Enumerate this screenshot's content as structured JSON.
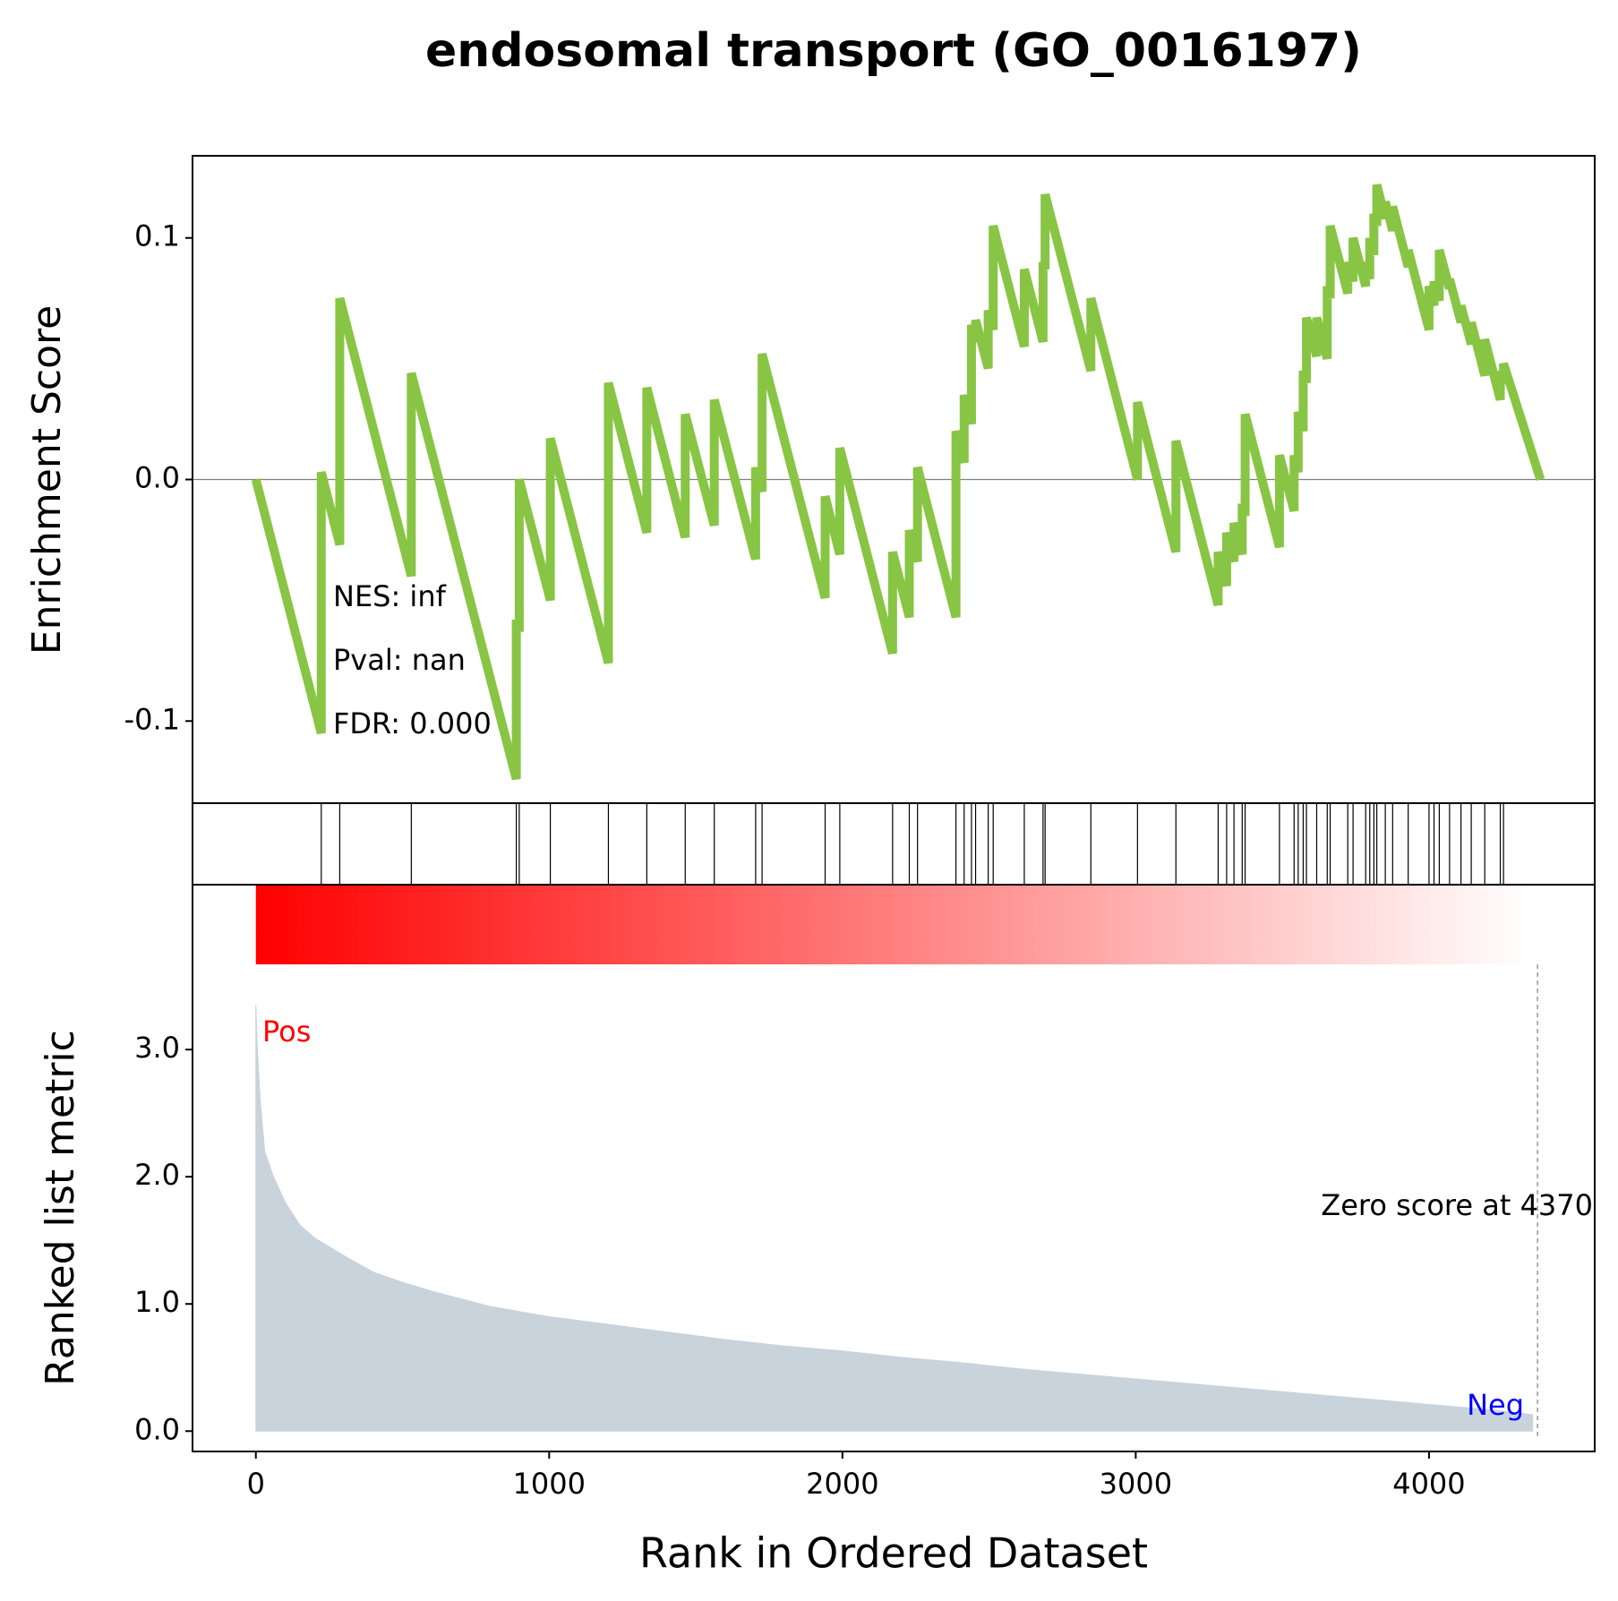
{
  "chart_data": [
    {
      "type": "line",
      "title": "endosomal transport (GO_0016197)",
      "ylabel": "Enrichment Score",
      "color": "#88c544",
      "xlim": [
        -216,
        4565
      ],
      "ylim": [
        -0.134,
        0.134
      ],
      "yticks": [
        -0.1,
        {
          "value": 0,
          "label": "0.0"
        },
        0.1
      ],
      "annotations": [
        "NES: inf",
        "Pval: nan",
        "FDR: 0.000"
      ],
      "x": [
        0,
        223,
        223,
        286,
        286,
        530,
        530,
        888,
        888,
        898,
        898,
        1004,
        1004,
        1202,
        1202,
        1333,
        1333,
        1464,
        1464,
        1563,
        1563,
        1704,
        1704,
        1726,
        1726,
        1941,
        1941,
        1991,
        1991,
        2171,
        2171,
        2228,
        2228,
        2256,
        2256,
        2387,
        2387,
        2415,
        2415,
        2440,
        2440,
        2454,
        2454,
        2497,
        2497,
        2514,
        2514,
        2620,
        2620,
        2684,
        2684,
        2691,
        2691,
        2847,
        2847,
        3006,
        3006,
        3137,
        3137,
        3281,
        3281,
        3310,
        3310,
        3335,
        3335,
        3363,
        3363,
        3373,
        3373,
        3490,
        3490,
        3540,
        3540,
        3554,
        3554,
        3571,
        3571,
        3582,
        3582,
        3617,
        3617,
        3653,
        3653,
        3663,
        3663,
        3723,
        3723,
        3741,
        3741,
        3784,
        3784,
        3798,
        3798,
        3812,
        3812,
        3822,
        3822,
        3851,
        3851,
        3876,
        3876,
        3929,
        3929,
        4000,
        4000,
        4017,
        4017,
        4035,
        4035,
        4070,
        4070,
        4109,
        4109,
        4144,
        4144,
        4190,
        4190,
        4243,
        4243,
        4254,
        4254,
        4380
      ],
      "values": [
        0,
        -0.105,
        0.003,
        -0.027,
        0.075,
        -0.04,
        0.044,
        -0.124,
        -0.058,
        -0.063,
        0,
        -0.05,
        0.017,
        -0.076,
        0.04,
        -0.022,
        0.038,
        -0.024,
        0.027,
        -0.019,
        0.033,
        -0.033,
        0.005,
        -0.005,
        0.052,
        -0.049,
        -0.007,
        -0.031,
        0.013,
        -0.072,
        -0.03,
        -0.057,
        -0.021,
        -0.034,
        0.005,
        -0.057,
        0.02,
        0.007,
        0.035,
        0.023,
        0.064,
        0.057,
        0.066,
        0.046,
        0.07,
        0.062,
        0.105,
        0.055,
        0.087,
        0.057,
        0.09,
        0.087,
        0.118,
        0.045,
        0.075,
        0,
        0.032,
        -0.03,
        0.016,
        -0.052,
        -0.03,
        -0.044,
        -0.022,
        -0.034,
        -0.018,
        -0.031,
        -0.01,
        -0.015,
        0.027,
        -0.028,
        0.01,
        -0.013,
        0.01,
        0.003,
        0.028,
        0.02,
        0.045,
        0.04,
        0.067,
        0.051,
        0.067,
        0.05,
        0.08,
        0.075,
        0.105,
        0.077,
        0.09,
        0.082,
        0.1,
        0.08,
        0.09,
        0.083,
        0.1,
        0.093,
        0.11,
        0.105,
        0.122,
        0.108,
        0.115,
        0.103,
        0.113,
        0.088,
        0.095,
        0.062,
        0.08,
        0.072,
        0.082,
        0.074,
        0.095,
        0.079,
        0.083,
        0.065,
        0.072,
        0.056,
        0.065,
        0.043,
        0.058,
        0.033,
        0.045,
        0.04,
        0.048,
        0
      ]
    },
    {
      "type": "hits",
      "color": "#000000",
      "xlim": [
        -216,
        4565
      ],
      "x": [
        223,
        286,
        530,
        888,
        898,
        1004,
        1202,
        1333,
        1464,
        1563,
        1704,
        1726,
        1941,
        1991,
        2171,
        2228,
        2256,
        2387,
        2415,
        2440,
        2454,
        2497,
        2514,
        2620,
        2684,
        2691,
        2847,
        3006,
        3137,
        3281,
        3310,
        3335,
        3363,
        3373,
        3490,
        3540,
        3554,
        3571,
        3582,
        3617,
        3653,
        3663,
        3723,
        3741,
        3784,
        3798,
        3812,
        3822,
        3851,
        3876,
        3929,
        4000,
        4017,
        4035,
        4070,
        4109,
        4144,
        4190,
        4243,
        4254
      ]
    },
    {
      "type": "area",
      "ylabel": "Ranked list metric",
      "xlabel": "Rank in Ordered Dataset",
      "color": "#c9d3dc",
      "colorbar": [
        "#ff0000",
        "#ffffff"
      ],
      "xlim": [
        -216,
        4565
      ],
      "ylim": [
        -0.16,
        3.67
      ],
      "xticks": [
        0,
        1000,
        2000,
        3000,
        4000
      ],
      "yticks": [
        {
          "value": 0,
          "label": "0.0"
        },
        {
          "value": 1,
          "label": "1.0"
        },
        {
          "value": 2,
          "label": "2.0"
        },
        {
          "value": 3,
          "label": "3.0"
        }
      ],
      "pos_label": "Pos",
      "neg_label": "Neg",
      "zero_label": "Zero score at 4370",
      "zero_rank": 4370,
      "x": [
        0,
        5,
        15,
        30,
        60,
        100,
        150,
        200,
        300,
        400,
        500,
        600,
        700,
        800,
        1000,
        1200,
        1400,
        1600,
        1800,
        2000,
        2200,
        2400,
        2600,
        2800,
        3000,
        3200,
        3400,
        3600,
        3800,
        4000,
        4200,
        4353
      ],
      "values": [
        3.35,
        3.0,
        2.6,
        2.2,
        2.0,
        1.8,
        1.62,
        1.52,
        1.38,
        1.25,
        1.17,
        1.1,
        1.04,
        0.98,
        0.9,
        0.84,
        0.78,
        0.72,
        0.67,
        0.63,
        0.58,
        0.54,
        0.49,
        0.45,
        0.41,
        0.37,
        0.33,
        0.29,
        0.25,
        0.21,
        0.17,
        0.13
      ]
    }
  ]
}
